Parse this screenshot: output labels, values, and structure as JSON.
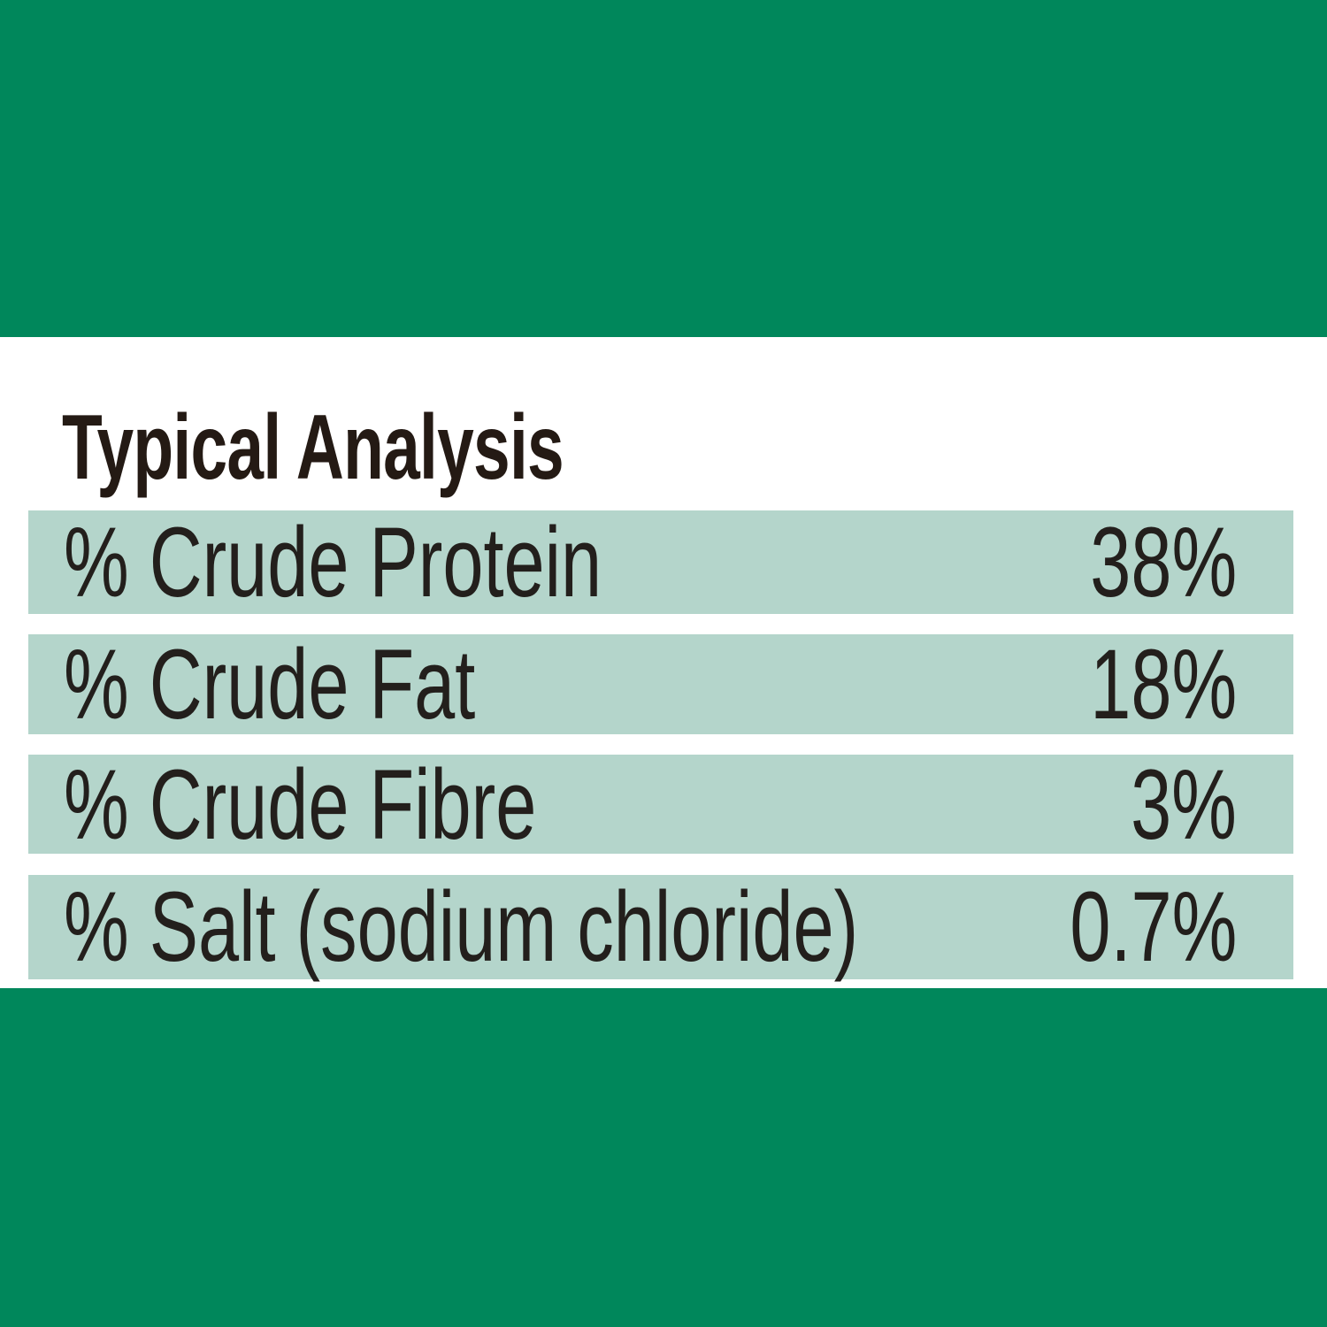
{
  "colors": {
    "brand_green": "#00875B",
    "row_background": "#B4D5CB",
    "text": "#231f1c"
  },
  "title": "Typical Analysis",
  "rows": [
    {
      "label": "% Crude Protein",
      "value": "38%"
    },
    {
      "label": "% Crude Fat",
      "value": "18%"
    },
    {
      "label": "% Crude Fibre",
      "value": "3%"
    },
    {
      "label": "% Salt (sodium chloride)",
      "value": "0.7%"
    }
  ]
}
